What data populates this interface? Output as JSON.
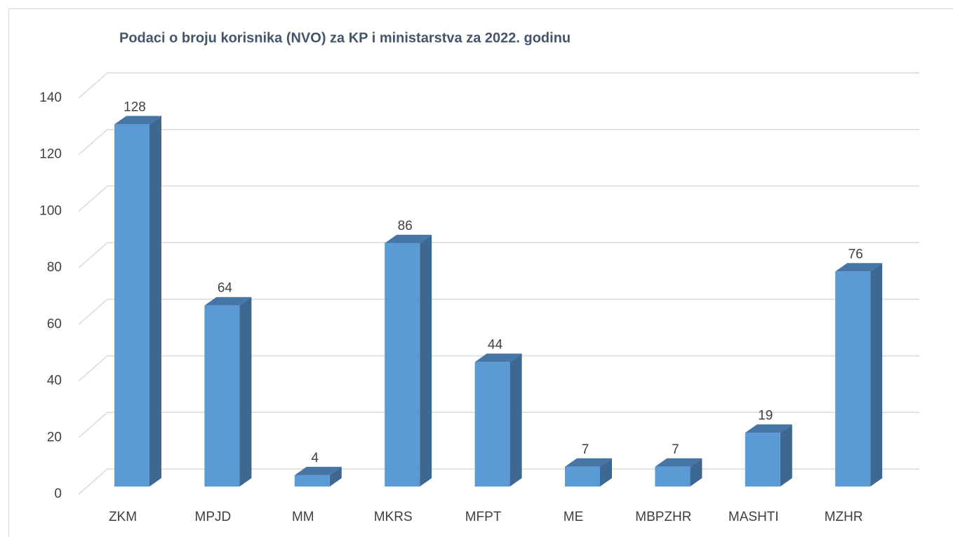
{
  "chart_data": {
    "type": "bar3d",
    "title": "Podaci o broju korisnika (NVO) za KP i ministarstva za 2022. godinu",
    "categories": [
      "ZKM",
      "MPJD",
      "MM",
      "MKRS",
      "MFPT",
      "ME",
      "MBPZHR",
      "MASHTI",
      "MZHR"
    ],
    "values": [
      128,
      64,
      4,
      86,
      44,
      7,
      7,
      19,
      76
    ],
    "color": "#5b9bd5",
    "ylim": [
      0,
      140
    ],
    "yticks": [
      0,
      20,
      40,
      60,
      80,
      100,
      120,
      140
    ],
    "grid": true
  }
}
